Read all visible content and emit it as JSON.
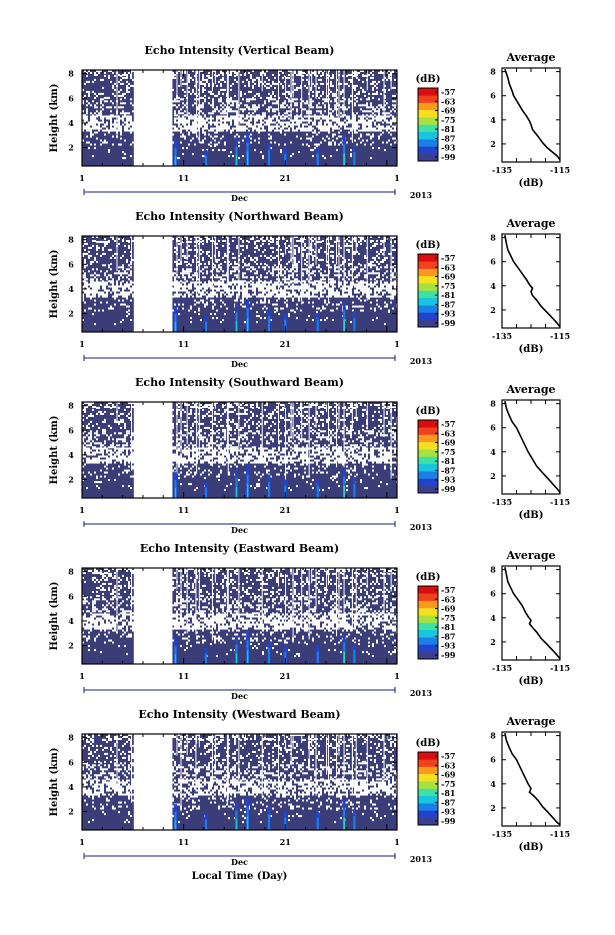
{
  "figure": {
    "x_axis_label": "Local Time (Day)",
    "month": "Dec",
    "year": "2013",
    "day_ticks": [
      "1",
      "11",
      "21",
      "1"
    ],
    "height_label": "Height (km)",
    "height_ticks": [
      "2",
      "4",
      "6",
      "8"
    ],
    "colorbar_unit": "(dB)",
    "colorbar_ticks": [
      "-57",
      "-63",
      "-69",
      "-75",
      "-81",
      "-87",
      "-93",
      "-99"
    ],
    "colorbar_colors": [
      "#3b3f8f",
      "#2244cc",
      "#1b7fe8",
      "#19c4e0",
      "#3fe0a8",
      "#a8e03f",
      "#f4e020",
      "#f79a1e",
      "#f0421c",
      "#d80e10"
    ],
    "background_color": "#3b3d78",
    "average_title": "Average",
    "average_xticks": [
      "-135",
      "-115"
    ],
    "average_xlabel": "(dB)"
  },
  "chart_data": [
    {
      "type": "heatmap",
      "title": "Echo Intensity (Vertical Beam)",
      "xlabel": "Dec 2013",
      "ylabel": "Height (km)",
      "xlim": [
        "2013-12-01",
        "2014-01-01"
      ],
      "ylim": [
        0.5,
        8.3
      ],
      "data_gap": [
        "2013-12-06",
        "2013-12-10"
      ],
      "colorbar": {
        "label": "(dB)",
        "range": [
          -99,
          -57
        ]
      },
      "average_profile": {
        "title": "Average",
        "xlabel": "(dB)",
        "xlim": [
          -135,
          -115
        ],
        "ylim": [
          0.5,
          8.3
        ],
        "height_km": [
          8.2,
          7.5,
          7.0,
          6.4,
          6.0,
          5.4,
          4.8,
          4.3,
          3.9,
          3.6,
          3.2,
          2.6,
          2.1,
          1.7,
          1.3,
          1.0,
          0.7
        ],
        "echo_db": [
          -134,
          -133,
          -132.5,
          -131.5,
          -131,
          -129.5,
          -128,
          -126.5,
          -125.5,
          -125,
          -124.5,
          -122.5,
          -121,
          -119.5,
          -117.5,
          -116,
          -115
        ]
      }
    },
    {
      "type": "heatmap",
      "title": "Echo Intensity (Northward Beam)",
      "xlabel": "Dec 2013",
      "ylabel": "Height (km)",
      "xlim": [
        "2013-12-01",
        "2014-01-01"
      ],
      "ylim": [
        0.5,
        8.3
      ],
      "data_gap": [
        "2013-12-06",
        "2013-12-10"
      ],
      "colorbar": {
        "label": "(dB)",
        "range": [
          -99,
          -57
        ]
      },
      "average_profile": {
        "title": "Average",
        "xlabel": "(dB)",
        "xlim": [
          -135,
          -115
        ],
        "ylim": [
          0.5,
          8.3
        ],
        "height_km": [
          8.2,
          7.5,
          7.0,
          6.5,
          6.0,
          5.5,
          5.0,
          4.5,
          4.1,
          3.8,
          3.5,
          3.2,
          2.8,
          2.3,
          1.8,
          1.3,
          0.9,
          0.6
        ],
        "echo_db": [
          -134,
          -133.5,
          -133,
          -132,
          -131,
          -129.5,
          -128,
          -126.5,
          -125.5,
          -124.5,
          -125,
          -124.5,
          -123,
          -121.5,
          -119.5,
          -117.5,
          -116,
          -115
        ]
      }
    },
    {
      "type": "heatmap",
      "title": "Echo Intensity (Southward Beam)",
      "xlabel": "Dec 2013",
      "ylabel": "Height (km)",
      "xlim": [
        "2013-12-01",
        "2014-01-01"
      ],
      "ylim": [
        0.5,
        8.3
      ],
      "data_gap": [
        "2013-12-06",
        "2013-12-10"
      ],
      "colorbar": {
        "label": "(dB)",
        "range": [
          -99,
          -57
        ]
      },
      "average_profile": {
        "title": "Average",
        "xlabel": "(dB)",
        "xlim": [
          -135,
          -115
        ],
        "ylim": [
          0.5,
          8.3
        ],
        "height_km": [
          8.2,
          7.6,
          7.0,
          6.5,
          6.0,
          5.5,
          5.0,
          4.5,
          4.0,
          3.6,
          3.2,
          2.8,
          2.4,
          2.0,
          1.6,
          1.2,
          0.8,
          0.6
        ],
        "echo_db": [
          -134,
          -133.5,
          -132.5,
          -131.5,
          -130,
          -129,
          -128,
          -127,
          -126,
          -125,
          -124,
          -123,
          -121.5,
          -120,
          -118.5,
          -117,
          -115.5,
          -115
        ]
      }
    },
    {
      "type": "heatmap",
      "title": "Echo Intensity (Eastward Beam)",
      "xlabel": "Dec 2013",
      "ylabel": "Height (km)",
      "xlim": [
        "2013-12-01",
        "2014-01-01"
      ],
      "ylim": [
        0.5,
        8.3
      ],
      "data_gap": [
        "2013-12-06",
        "2013-12-10"
      ],
      "colorbar": {
        "label": "(dB)",
        "range": [
          -99,
          -57
        ]
      },
      "average_profile": {
        "title": "Average",
        "xlabel": "(dB)",
        "xlim": [
          -135,
          -115
        ],
        "ylim": [
          0.5,
          8.3
        ],
        "height_km": [
          8.2,
          7.6,
          7.0,
          6.5,
          6.0,
          5.5,
          5.0,
          4.5,
          4.1,
          3.8,
          3.5,
          3.2,
          2.8,
          2.3,
          1.8,
          1.3,
          0.9,
          0.6
        ],
        "echo_db": [
          -134,
          -133.5,
          -133,
          -132,
          -131,
          -129.5,
          -128,
          -127,
          -126,
          -125,
          -125.5,
          -124.5,
          -123,
          -121.5,
          -119.5,
          -117.5,
          -116,
          -115
        ]
      }
    },
    {
      "type": "heatmap",
      "title": "Echo Intensity (Westward Beam)",
      "xlabel": "Dec 2013",
      "ylabel": "Height (km)",
      "xlim": [
        "2013-12-01",
        "2014-01-01"
      ],
      "ylim": [
        0.5,
        8.3
      ],
      "data_gap": [
        "2013-12-06",
        "2013-12-10"
      ],
      "colorbar": {
        "label": "(dB)",
        "range": [
          -99,
          -57
        ]
      },
      "average_profile": {
        "title": "Average",
        "xlabel": "(dB)",
        "xlim": [
          -135,
          -115
        ],
        "ylim": [
          0.5,
          8.3
        ],
        "height_km": [
          8.2,
          7.6,
          7.0,
          6.5,
          6.0,
          5.5,
          5.0,
          4.5,
          4.0,
          3.6,
          3.3,
          3.0,
          2.6,
          2.1,
          1.6,
          1.2,
          0.8,
          0.6
        ],
        "echo_db": [
          -134,
          -133.5,
          -132.5,
          -131.5,
          -130,
          -129,
          -128,
          -127,
          -126,
          -125,
          -125.5,
          -124,
          -122.5,
          -121,
          -119,
          -117.5,
          -116,
          -115
        ]
      }
    }
  ]
}
